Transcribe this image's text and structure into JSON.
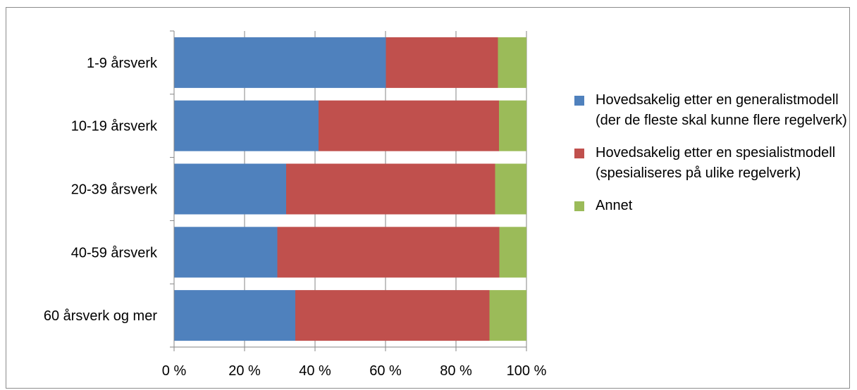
{
  "chart_data": {
    "type": "bar",
    "orientation": "horizontal",
    "stacked": "percent",
    "categories": [
      "1-9 årsverk",
      "10-19 årsverk",
      "20-39 årsverk",
      "40-59 årsverk",
      "60 årsverk og mer"
    ],
    "series": [
      {
        "name": "Hovedsakelig etter en generalistmodell (der de fleste skal kunne flere regelverk)",
        "color": "#4f81bd",
        "values": [
          60.1,
          41.0,
          31.8,
          29.3,
          34.4
        ]
      },
      {
        "name": "Hovedsakelig etter en spesialistmodell (spesialiseres på ulike regelverk)",
        "color": "#c0504d",
        "values": [
          31.8,
          51.2,
          59.3,
          63.0,
          55.1
        ]
      },
      {
        "name": "Annet",
        "color": "#9bbb59",
        "values": [
          8.1,
          7.8,
          8.9,
          7.7,
          10.5
        ]
      }
    ],
    "x_ticks": [
      "0 %",
      "20 %",
      "40 %",
      "60 %",
      "80 %",
      "100 %"
    ],
    "xlim": [
      0,
      100
    ],
    "grid": "vertical",
    "legend_position": "right"
  }
}
